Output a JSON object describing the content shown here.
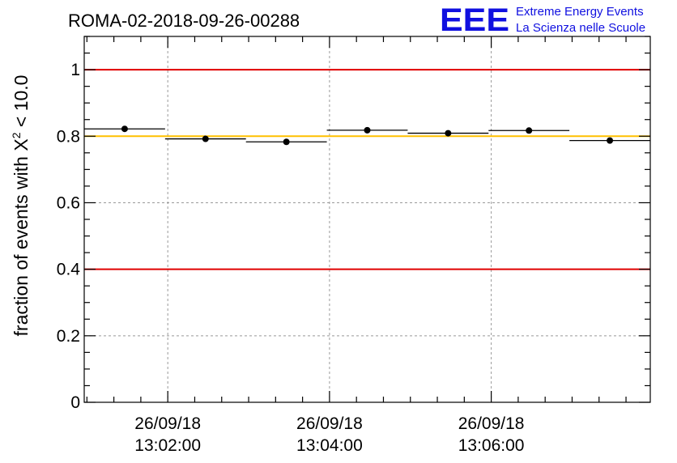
{
  "header": {
    "run_id": "ROMA-02-2018-09-26-00288",
    "logo_mark": "EEE",
    "logo_line1": "Extreme Energy Events",
    "logo_line2": "La Scienza nelle Scuole"
  },
  "colors": {
    "limit_line": "#e00000",
    "reference_line": "#ffc000",
    "logo": "#1010e0",
    "grid": "#999999",
    "marker": "#000000"
  },
  "chart_data": {
    "type": "scatter",
    "title": "ROMA-02-2018-09-26-00288",
    "ylabel": {
      "text": "fraction of events with ",
      "symbol": "X",
      "superscript": "2",
      "suffix": " < 10.0"
    },
    "xlabel": "",
    "ylim": [
      0,
      1.1
    ],
    "yticks": [
      {
        "value": 0,
        "label": "0"
      },
      {
        "value": 0.2,
        "label": "0.2"
      },
      {
        "value": 0.4,
        "label": "0.4"
      },
      {
        "value": 0.6,
        "label": "0.6"
      },
      {
        "value": 0.8,
        "label": "0.8"
      },
      {
        "value": 1.0,
        "label": "1"
      }
    ],
    "xlim": [
      "2018-09-26 13:00:58",
      "2018-09-26 13:07:58"
    ],
    "xticks": [
      {
        "value": "2018-09-26 13:02:00",
        "date": "26/09/18",
        "time": "13:02:00"
      },
      {
        "value": "2018-09-26 13:04:00",
        "date": "26/09/18",
        "time": "13:04:00"
      },
      {
        "value": "2018-09-26 13:06:00",
        "date": "26/09/18",
        "time": "13:06:00"
      }
    ],
    "grid": true,
    "reference_lines": [
      {
        "y": 1.0,
        "color": "#e00000"
      },
      {
        "y": 0.4,
        "color": "#e00000"
      },
      {
        "y": 0.8,
        "color": "#ffc000"
      }
    ],
    "series": [
      {
        "x_start": [
          "2018-09-26 13:00:58",
          "2018-09-26 13:01:58",
          "2018-09-26 13:02:58",
          "2018-09-26 13:03:58",
          "2018-09-26 13:04:58",
          "2018-09-26 13:05:58",
          "2018-09-26 13:06:58"
        ],
        "x_end": [
          "2018-09-26 13:01:58",
          "2018-09-26 13:02:58",
          "2018-09-26 13:03:58",
          "2018-09-26 13:04:58",
          "2018-09-26 13:05:58",
          "2018-09-26 13:06:58",
          "2018-09-26 13:07:58"
        ],
        "y": [
          0.822,
          0.792,
          0.783,
          0.818,
          0.809,
          0.817,
          0.787
        ]
      }
    ]
  }
}
